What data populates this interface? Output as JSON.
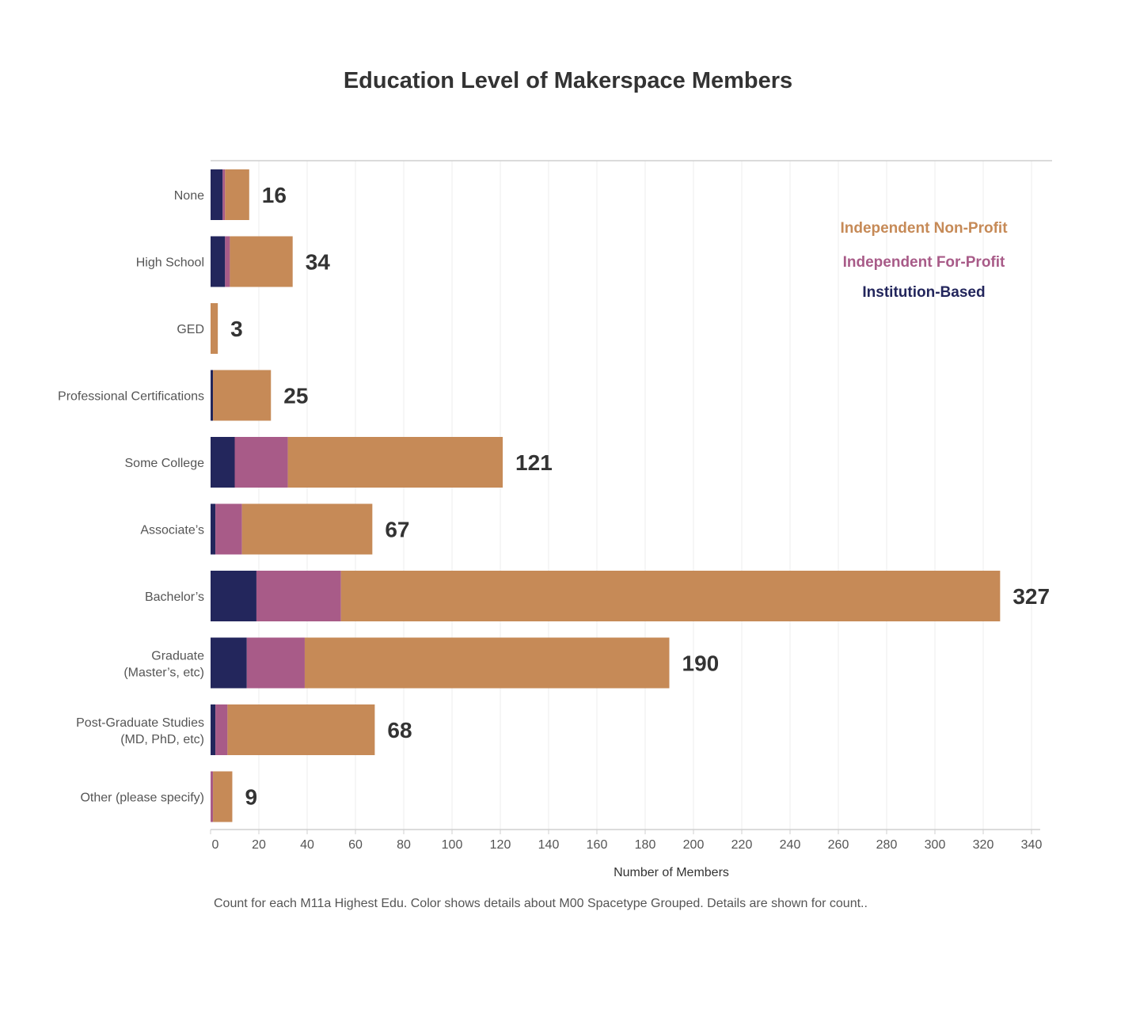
{
  "chart_data": {
    "type": "bar",
    "orientation": "horizontal",
    "stacked": true,
    "title": "Education Level of Makerspace Members",
    "xlabel": "Number of Members",
    "ylabel": "",
    "xlim": [
      0,
      345
    ],
    "xticks": [
      0,
      20,
      40,
      60,
      80,
      100,
      120,
      140,
      160,
      180,
      200,
      220,
      240,
      260,
      280,
      300,
      320,
      340
    ],
    "grid": "vertical",
    "legend_position": "top-right",
    "categories": [
      [
        "None"
      ],
      [
        "High School"
      ],
      [
        "GED"
      ],
      [
        "Professional Certifications"
      ],
      [
        "Some College"
      ],
      [
        "Associate’s"
      ],
      [
        "Bachelor’s"
      ],
      [
        "Graduate",
        "(Master’s, etc)"
      ],
      [
        "Post-Graduate Studies",
        "(MD, PhD, etc)"
      ],
      [
        "Other (please specify)"
      ]
    ],
    "totals": [
      16,
      34,
      3,
      25,
      121,
      67,
      327,
      190,
      68,
      9
    ],
    "series": [
      {
        "name": "Institution-Based",
        "color": "#23265c",
        "values": [
          5,
          6,
          0,
          1,
          10,
          2,
          19,
          15,
          2,
          0
        ]
      },
      {
        "name": "Independent For-Profit",
        "color": "#a85b88",
        "values": [
          1,
          2,
          0,
          0,
          22,
          11,
          35,
          24,
          5,
          1
        ]
      },
      {
        "name": "Independent Non-Profit",
        "color": "#c68a57",
        "values": [
          10,
          26,
          3,
          24,
          89,
          54,
          273,
          151,
          61,
          8
        ]
      }
    ],
    "legend_order": [
      "Independent Non-Profit",
      "Independent For-Profit",
      "Institution-Based"
    ],
    "note": "Count for each M11a Highest Edu.  Color shows details about M00 Spacetype Grouped.  Details are shown for count.."
  }
}
